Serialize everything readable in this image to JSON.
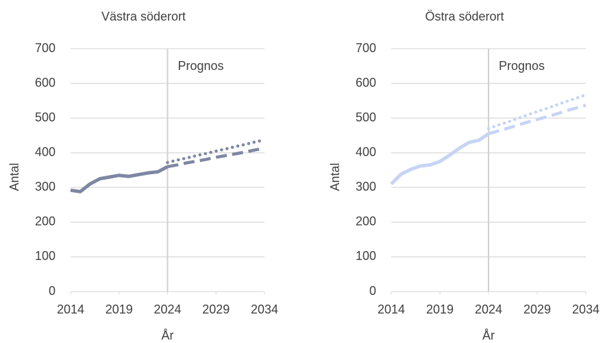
{
  "chart_data": [
    {
      "type": "line",
      "title": "Västra söderort",
      "xlabel": "År",
      "ylabel": "Antal",
      "annotation": "Prognos",
      "vline": 2024,
      "x": [
        2014,
        2015,
        2016,
        2017,
        2018,
        2019,
        2020,
        2021,
        2022,
        2023,
        2024,
        2025,
        2026,
        2027,
        2028,
        2029,
        2030,
        2031,
        2032,
        2033,
        2034
      ],
      "series": [
        {
          "color": "#7e87a2",
          "style": "solid",
          "values": [
            292,
            288,
            310,
            325,
            330,
            335,
            332,
            337,
            342,
            345,
            360,
            null,
            null,
            null,
            null,
            null,
            null,
            null,
            null,
            null,
            null
          ]
        },
        {
          "color": "#7e87a2",
          "style": "dashed",
          "values": [
            null,
            null,
            null,
            null,
            null,
            null,
            null,
            null,
            null,
            null,
            360,
            365,
            371,
            376,
            381,
            387,
            392,
            397,
            402,
            408,
            413
          ]
        },
        {
          "color": "#7e87a2",
          "style": "dotted",
          "values": [
            null,
            null,
            null,
            null,
            null,
            null,
            null,
            null,
            null,
            null,
            372,
            379,
            385,
            392,
            398,
            405,
            411,
            418,
            424,
            431,
            437
          ]
        }
      ],
      "xlim": [
        2014,
        2034
      ],
      "xticks": [
        2014,
        2019,
        2024,
        2029,
        2034
      ],
      "ylim": [
        0,
        700
      ],
      "yticks": [
        0,
        100,
        200,
        300,
        400,
        500,
        600,
        700
      ],
      "grid": true
    },
    {
      "type": "line",
      "title": "Östra söderort",
      "xlabel": "År",
      "ylabel": "Antal",
      "annotation": "Prognos",
      "vline": 2024,
      "x": [
        2014,
        2015,
        2016,
        2017,
        2018,
        2019,
        2020,
        2021,
        2022,
        2023,
        2024,
        2025,
        2026,
        2027,
        2028,
        2029,
        2030,
        2031,
        2032,
        2033,
        2034
      ],
      "series": [
        {
          "color": "#c6d4f5",
          "style": "solid",
          "values": [
            310,
            338,
            352,
            362,
            365,
            375,
            393,
            413,
            430,
            436,
            455,
            null,
            null,
            null,
            null,
            null,
            null,
            null,
            null,
            null,
            null
          ]
        },
        {
          "color": "#c6d4f5",
          "style": "dashed",
          "values": [
            null,
            null,
            null,
            null,
            null,
            null,
            null,
            null,
            null,
            null,
            455,
            463,
            471,
            480,
            488,
            496,
            504,
            512,
            521,
            529,
            537
          ]
        },
        {
          "color": "#c6d4f5",
          "style": "dotted",
          "values": [
            null,
            null,
            null,
            null,
            null,
            null,
            null,
            null,
            null,
            null,
            470,
            480,
            489,
            499,
            509,
            519,
            528,
            538,
            548,
            557,
            567
          ]
        }
      ],
      "xlim": [
        2014,
        2034
      ],
      "xticks": [
        2014,
        2019,
        2024,
        2029,
        2034
      ],
      "ylim": [
        0,
        700
      ],
      "yticks": [
        0,
        100,
        200,
        300,
        400,
        500,
        600,
        700
      ],
      "grid": true
    }
  ]
}
